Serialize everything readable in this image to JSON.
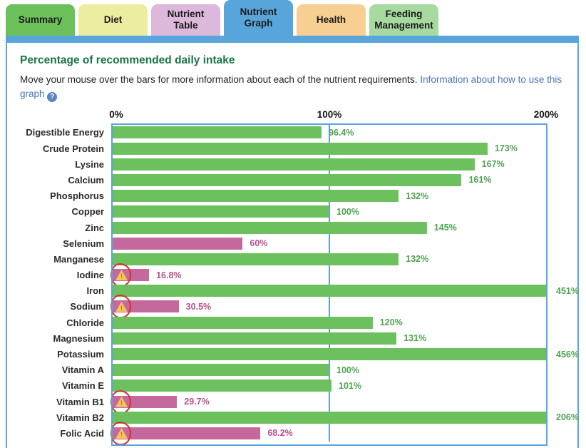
{
  "tabs": [
    {
      "label": "Summary",
      "color": "#6cc05a",
      "active": false
    },
    {
      "label": "Diet",
      "color": "#eceda0",
      "active": false
    },
    {
      "label": "Nutrient Table",
      "color": "#dcb9da",
      "active": false
    },
    {
      "label": "Nutrient Graph",
      "color": "#58a5db",
      "active": true
    },
    {
      "label": "Health",
      "color": "#f8cf92",
      "active": false
    },
    {
      "label": "Feeding Management",
      "color": "#a7daa1",
      "active": false
    }
  ],
  "panel": {
    "title": "Percentage of recommended daily intake",
    "intro_text": "Move your mouse over the bars for more information about each of the nutrient requirements.",
    "link_text": "Information about how to use this graph",
    "help_icon_glyph": "?"
  },
  "chart_data": {
    "type": "bar",
    "orientation": "horizontal",
    "title": "Percentage of recommended daily intake",
    "xlabel": "",
    "ylabel": "",
    "xlim": [
      0,
      200
    ],
    "axis_ticks": [
      "0%",
      "100%",
      "200%"
    ],
    "gridline_at": 100,
    "note": "Bars exceeding 200% are capped at the plot edge with the value shown outside the frame; low values shown in pink; warning triangles circled in red on deficient nutrients",
    "colors": {
      "normal_bar": "#6cc15e",
      "low_bar": "#c5689b",
      "normal_text": "#4fa352",
      "low_text": "#b8508a",
      "frame": "#58a5db",
      "warning_fill": "#f6c35a",
      "warning_mark": "#c9731a",
      "annotation_red": "#d32f2f"
    },
    "bars": [
      {
        "name": "Digestible Energy",
        "value": 96.4,
        "label": "96.4%",
        "status": "ok",
        "warning": false
      },
      {
        "name": "Crude Protein",
        "value": 173,
        "label": "173%",
        "status": "ok",
        "warning": false
      },
      {
        "name": "Lysine",
        "value": 167,
        "label": "167%",
        "status": "ok",
        "warning": false
      },
      {
        "name": "Calcium",
        "value": 161,
        "label": "161%",
        "status": "ok",
        "warning": false
      },
      {
        "name": "Phosphorus",
        "value": 132,
        "label": "132%",
        "status": "ok",
        "warning": false
      },
      {
        "name": "Copper",
        "value": 100,
        "label": "100%",
        "status": "ok",
        "warning": false
      },
      {
        "name": "Zinc",
        "value": 145,
        "label": "145%",
        "status": "ok",
        "warning": false
      },
      {
        "name": "Selenium",
        "value": 60,
        "label": "60%",
        "status": "low",
        "warning": false
      },
      {
        "name": "Manganese",
        "value": 132,
        "label": "132%",
        "status": "ok",
        "warning": false
      },
      {
        "name": "Iodine",
        "value": 16.8,
        "label": "16.8%",
        "status": "low",
        "warning": true
      },
      {
        "name": "Iron",
        "value": 451,
        "label": "451%",
        "status": "ok",
        "warning": false
      },
      {
        "name": "Sodium",
        "value": 30.5,
        "label": "30.5%",
        "status": "low",
        "warning": true
      },
      {
        "name": "Chloride",
        "value": 120,
        "label": "120%",
        "status": "ok",
        "warning": false
      },
      {
        "name": "Magnesium",
        "value": 131,
        "label": "131%",
        "status": "ok",
        "warning": false
      },
      {
        "name": "Potassium",
        "value": 456,
        "label": "456%",
        "status": "ok",
        "warning": false
      },
      {
        "name": "Vitamin A",
        "value": 100,
        "label": "100%",
        "status": "ok",
        "warning": false
      },
      {
        "name": "Vitamin E",
        "value": 101,
        "label": "101%",
        "status": "ok",
        "warning": false
      },
      {
        "name": "Vitamin B1",
        "value": 29.7,
        "label": "29.7%",
        "status": "low",
        "warning": true
      },
      {
        "name": "Vitamin B2",
        "value": 206,
        "label": "206%",
        "status": "ok",
        "warning": false
      },
      {
        "name": "Folic Acid",
        "value": 68.2,
        "label": "68.2%",
        "status": "low",
        "warning": true
      }
    ]
  }
}
